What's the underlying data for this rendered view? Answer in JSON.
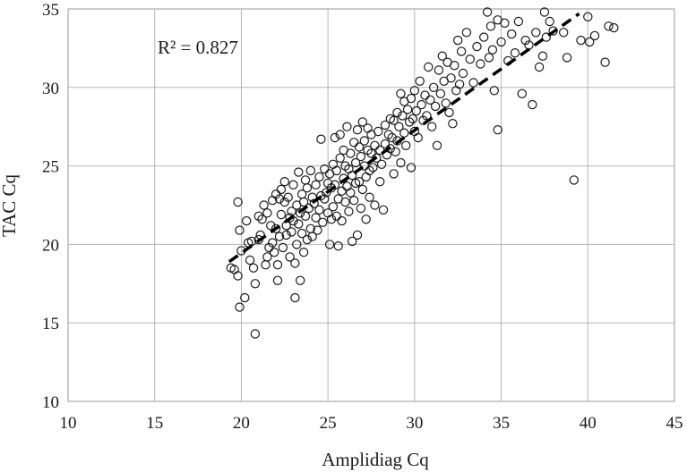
{
  "chart_data": {
    "type": "scatter",
    "xlabel": "Amplidiag Cq",
    "ylabel": "TAC Cq",
    "xlim": [
      10,
      45
    ],
    "ylim": [
      10,
      35
    ],
    "x_ticks": [
      "10",
      "15",
      "20",
      "25",
      "30",
      "35",
      "40",
      "45"
    ],
    "y_ticks": [
      "10",
      "15",
      "20",
      "25",
      "30",
      "35"
    ],
    "grid": true,
    "annotation": "R² = 0.827",
    "trendline": {
      "style": "dashed",
      "x": [
        19.3,
        39.5
      ],
      "y": [
        18.9,
        34.7
      ]
    },
    "points": [
      [
        19.4,
        18.5
      ],
      [
        19.6,
        18.4
      ],
      [
        19.8,
        18.0
      ],
      [
        19.9,
        16.0
      ],
      [
        19.8,
        22.7
      ],
      [
        19.9,
        20.9
      ],
      [
        20.0,
        19.6
      ],
      [
        20.2,
        16.6
      ],
      [
        20.3,
        21.5
      ],
      [
        20.4,
        20.1
      ],
      [
        20.5,
        19.0
      ],
      [
        20.6,
        20.2
      ],
      [
        20.7,
        18.5
      ],
      [
        20.8,
        17.5
      ],
      [
        20.8,
        14.3
      ],
      [
        21.0,
        20.3
      ],
      [
        21.0,
        21.8
      ],
      [
        21.1,
        20.6
      ],
      [
        21.2,
        21.6
      ],
      [
        21.3,
        22.5
      ],
      [
        21.4,
        18.7
      ],
      [
        21.5,
        19.2
      ],
      [
        21.5,
        22.0
      ],
      [
        21.6,
        19.8
      ],
      [
        21.7,
        21.2
      ],
      [
        21.8,
        20.1
      ],
      [
        21.8,
        22.8
      ],
      [
        21.9,
        19.5
      ],
      [
        22.0,
        21.0
      ],
      [
        22.0,
        23.2
      ],
      [
        22.1,
        17.7
      ],
      [
        22.1,
        18.7
      ],
      [
        22.2,
        22.9
      ],
      [
        22.2,
        20.5
      ],
      [
        22.3,
        21.9
      ],
      [
        22.3,
        23.5
      ],
      [
        22.4,
        19.8
      ],
      [
        22.5,
        22.7
      ],
      [
        22.5,
        24.0
      ],
      [
        22.6,
        21.2
      ],
      [
        22.6,
        20.6
      ],
      [
        22.7,
        23.0
      ],
      [
        22.8,
        21.7
      ],
      [
        22.8,
        19.2
      ],
      [
        22.9,
        22.1
      ],
      [
        22.9,
        20.8
      ],
      [
        23.0,
        23.8
      ],
      [
        23.0,
        21.5
      ],
      [
        23.1,
        16.6
      ],
      [
        23.1,
        18.8
      ],
      [
        23.2,
        22.5
      ],
      [
        23.2,
        20.0
      ],
      [
        23.3,
        24.6
      ],
      [
        23.3,
        21.3
      ],
      [
        23.4,
        17.7
      ],
      [
        23.4,
        22.0
      ],
      [
        23.5,
        20.7
      ],
      [
        23.5,
        23.2
      ],
      [
        23.6,
        19.5
      ],
      [
        23.6,
        22.7
      ],
      [
        23.7,
        21.8
      ],
      [
        23.7,
        24.1
      ],
      [
        23.8,
        20.3
      ],
      [
        23.8,
        23.6
      ],
      [
        23.9,
        22.3
      ],
      [
        24.0,
        24.7
      ],
      [
        24.0,
        21.0
      ],
      [
        24.1,
        23.0
      ],
      [
        24.1,
        20.5
      ],
      [
        24.2,
        22.6
      ],
      [
        24.3,
        21.7
      ],
      [
        24.3,
        23.8
      ],
      [
        24.4,
        20.9
      ],
      [
        24.5,
        22.2
      ],
      [
        24.5,
        24.3
      ],
      [
        24.6,
        26.7
      ],
      [
        24.6,
        23.1
      ],
      [
        24.7,
        21.4
      ],
      [
        24.8,
        22.9
      ],
      [
        24.8,
        24.8
      ],
      [
        24.9,
        23.3
      ],
      [
        25.0,
        22.0
      ],
      [
        25.0,
        23.9
      ],
      [
        25.1,
        20.0
      ],
      [
        25.1,
        24.5
      ],
      [
        25.2,
        21.6
      ],
      [
        25.2,
        23.6
      ],
      [
        25.3,
        25.1
      ],
      [
        25.3,
        22.4
      ],
      [
        25.4,
        26.8
      ],
      [
        25.4,
        23.8
      ],
      [
        25.5,
        21.8
      ],
      [
        25.5,
        24.7
      ],
      [
        25.6,
        19.9
      ],
      [
        25.6,
        22.9
      ],
      [
        25.7,
        25.5
      ],
      [
        25.7,
        27.0
      ],
      [
        25.8,
        23.4
      ],
      [
        25.8,
        21.5
      ],
      [
        25.9,
        24.2
      ],
      [
        25.9,
        26.0
      ],
      [
        26.0,
        22.7
      ],
      [
        26.0,
        25.0
      ],
      [
        26.1,
        23.7
      ],
      [
        26.1,
        27.5
      ],
      [
        26.2,
        24.8
      ],
      [
        26.2,
        22.1
      ],
      [
        26.3,
        25.8
      ],
      [
        26.3,
        23.3
      ],
      [
        26.4,
        20.2
      ],
      [
        26.4,
        24.4
      ],
      [
        26.5,
        26.5
      ],
      [
        26.5,
        22.8
      ],
      [
        26.6,
        25.2
      ],
      [
        26.6,
        23.9
      ],
      [
        26.7,
        20.6
      ],
      [
        26.7,
        27.3
      ],
      [
        26.8,
        24.0
      ],
      [
        26.8,
        26.2
      ],
      [
        26.9,
        22.3
      ],
      [
        26.9,
        25.6
      ],
      [
        27.0,
        23.5
      ],
      [
        27.0,
        27.8
      ],
      [
        27.1,
        25.0
      ],
      [
        27.1,
        26.6
      ],
      [
        27.2,
        24.3
      ],
      [
        27.2,
        21.6
      ],
      [
        27.3,
        26.0
      ],
      [
        27.3,
        27.4
      ],
      [
        27.4,
        24.7
      ],
      [
        27.4,
        23.0
      ],
      [
        27.5,
        25.8
      ],
      [
        27.5,
        27.0
      ],
      [
        27.6,
        24.9
      ],
      [
        27.7,
        26.3
      ],
      [
        27.7,
        22.5
      ],
      [
        27.8,
        25.5
      ],
      [
        27.9,
        27.2
      ],
      [
        28.0,
        26.0
      ],
      [
        28.0,
        24.0
      ],
      [
        28.1,
        25.1
      ],
      [
        28.2,
        22.2
      ],
      [
        28.3,
        26.4
      ],
      [
        28.3,
        27.6
      ],
      [
        28.4,
        25.7
      ],
      [
        28.5,
        27.0
      ],
      [
        28.6,
        26.1
      ],
      [
        28.6,
        28.0
      ],
      [
        28.7,
        26.8
      ],
      [
        28.8,
        24.5
      ],
      [
        28.8,
        27.9
      ],
      [
        28.9,
        25.9
      ],
      [
        29.0,
        28.4
      ],
      [
        29.0,
        26.6
      ],
      [
        29.1,
        27.5
      ],
      [
        29.2,
        29.6
      ],
      [
        29.2,
        25.2
      ],
      [
        29.3,
        28.2
      ],
      [
        29.4,
        27.1
      ],
      [
        29.4,
        29.1
      ],
      [
        29.5,
        26.3
      ],
      [
        29.6,
        28.6
      ],
      [
        29.7,
        27.8
      ],
      [
        29.8,
        24.9
      ],
      [
        29.8,
        29.3
      ],
      [
        29.9,
        28.0
      ],
      [
        30.0,
        27.2
      ],
      [
        30.0,
        29.8
      ],
      [
        30.1,
        28.5
      ],
      [
        30.2,
        26.8
      ],
      [
        30.3,
        30.4
      ],
      [
        30.4,
        28.9
      ],
      [
        30.5,
        27.9
      ],
      [
        30.6,
        29.5
      ],
      [
        30.7,
        28.2
      ],
      [
        30.8,
        31.3
      ],
      [
        30.9,
        29.2
      ],
      [
        31.0,
        27.5
      ],
      [
        31.1,
        30.0
      ],
      [
        31.2,
        28.8
      ],
      [
        31.3,
        26.3
      ],
      [
        31.4,
        31.1
      ],
      [
        31.5,
        29.6
      ],
      [
        31.6,
        32.0
      ],
      [
        31.7,
        30.4
      ],
      [
        31.8,
        29.0
      ],
      [
        31.9,
        31.6
      ],
      [
        32.0,
        28.4
      ],
      [
        32.1,
        30.6
      ],
      [
        32.2,
        27.7
      ],
      [
        32.3,
        31.4
      ],
      [
        32.4,
        29.8
      ],
      [
        32.5,
        33.0
      ],
      [
        32.6,
        30.2
      ],
      [
        32.7,
        32.3
      ],
      [
        32.8,
        30.9
      ],
      [
        33.0,
        33.5
      ],
      [
        33.2,
        31.8
      ],
      [
        33.4,
        30.3
      ],
      [
        33.6,
        32.6
      ],
      [
        33.8,
        31.5
      ],
      [
        34.0,
        33.2
      ],
      [
        34.2,
        34.8
      ],
      [
        34.3,
        31.9
      ],
      [
        34.4,
        33.9
      ],
      [
        34.5,
        32.4
      ],
      [
        34.6,
        29.8
      ],
      [
        34.8,
        34.3
      ],
      [
        34.8,
        27.3
      ],
      [
        35.0,
        32.9
      ],
      [
        35.2,
        34.1
      ],
      [
        35.4,
        31.7
      ],
      [
        35.6,
        33.4
      ],
      [
        35.8,
        32.2
      ],
      [
        36.0,
        34.2
      ],
      [
        36.2,
        29.6
      ],
      [
        36.4,
        33.0
      ],
      [
        36.6,
        32.7
      ],
      [
        36.8,
        28.9
      ],
      [
        37.0,
        33.5
      ],
      [
        37.2,
        31.3
      ],
      [
        37.4,
        32.0
      ],
      [
        37.5,
        34.8
      ],
      [
        37.6,
        33.2
      ],
      [
        37.8,
        34.2
      ],
      [
        38.0,
        33.6
      ],
      [
        38.6,
        33.5
      ],
      [
        38.8,
        31.9
      ],
      [
        39.2,
        24.1
      ],
      [
        39.6,
        33.0
      ],
      [
        40.0,
        34.5
      ],
      [
        40.1,
        32.9
      ],
      [
        40.4,
        33.3
      ],
      [
        41.0,
        31.6
      ],
      [
        41.2,
        33.9
      ],
      [
        41.5,
        33.8
      ]
    ]
  }
}
